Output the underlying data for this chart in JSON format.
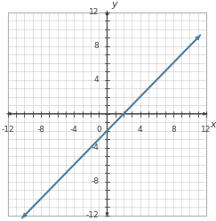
{
  "xlim": [
    -12,
    12
  ],
  "ylim": [
    -12,
    12
  ],
  "major_ticks": [
    -12,
    -8,
    -4,
    0,
    4,
    8,
    12
  ],
  "minor_ticks_x": [
    -12,
    -11,
    -10,
    -9,
    -8,
    -7,
    -6,
    -5,
    -4,
    -3,
    -2,
    -1,
    0,
    1,
    2,
    3,
    4,
    5,
    6,
    7,
    8,
    9,
    10,
    11,
    12
  ],
  "minor_ticks_y": [
    -12,
    -11,
    -10,
    -9,
    -8,
    -7,
    -6,
    -5,
    -4,
    -3,
    -2,
    -1,
    0,
    1,
    2,
    3,
    4,
    5,
    6,
    7,
    8,
    9,
    10,
    11,
    12
  ],
  "xlabel": "x",
  "ylabel": "y",
  "line_x_start": -10.5,
  "line_x_end": 11.5,
  "line_color": "#4d7fa3",
  "line_width": 1.3,
  "grid_color": "#c8c8c8",
  "axis_color": "#404040",
  "border_color": "#b0b0b0",
  "background_color": "#ffffff",
  "label_fontsize": 6.5,
  "axis_label_fontsize": 8,
  "slope": 1,
  "intercept": -2,
  "arrow_mutation_scale": 5,
  "tick_label_color": "#404040"
}
